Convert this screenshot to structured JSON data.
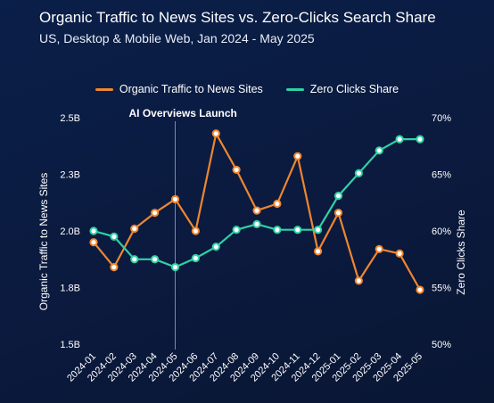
{
  "title": "Organic Traffic to News Sites vs. Zero-Clicks Search Share",
  "subtitle": "US, Desktop & Mobile Web, Jan 2024 - May 2025",
  "colors": {
    "traffic": "#f0862f",
    "zero": "#2fd1a6",
    "background": "#0b1a3e"
  },
  "chart_data": {
    "type": "line",
    "x": [
      "2024-01",
      "2024-02",
      "2024-03",
      "2024-04",
      "2024-05",
      "2024-06",
      "2024-07",
      "2024-08",
      "2024-09",
      "2024-10",
      "2024-11",
      "2024-12",
      "2025-01",
      "2025-02",
      "2025-03",
      "2025-04",
      "2025-05"
    ],
    "series": [
      {
        "name": "Organic Traffic to News Sites",
        "axis": "left",
        "values": [
          1.95,
          1.84,
          2.01,
          2.08,
          2.14,
          2.0,
          2.43,
          2.27,
          2.09,
          2.12,
          2.33,
          1.91,
          2.08,
          1.78,
          1.92,
          1.9,
          1.74
        ]
      },
      {
        "name": "Zero Clicks Share",
        "axis": "right",
        "values": [
          60,
          59.5,
          57.5,
          57.5,
          56.8,
          57.6,
          58.6,
          60.1,
          60.6,
          60.1,
          60.1,
          60.1,
          63.1,
          65.1,
          67.1,
          68.1,
          68.1
        ]
      }
    ],
    "y_left": {
      "label": "Organic Traffic to News Sites",
      "ticks": [
        "2.5B",
        "2.3B",
        "2.0B",
        "1.8B",
        "1.5B"
      ],
      "range": [
        1.5,
        2.5
      ]
    },
    "y_right": {
      "label": "Zero Clicks Share",
      "ticks": [
        "70%",
        "65%",
        "60%",
        "55%",
        "50%"
      ],
      "range": [
        50,
        70
      ]
    },
    "annotation": {
      "label": "AI Overviews Launch",
      "x": "2024-05"
    },
    "legend": "top-center",
    "grid": false
  }
}
